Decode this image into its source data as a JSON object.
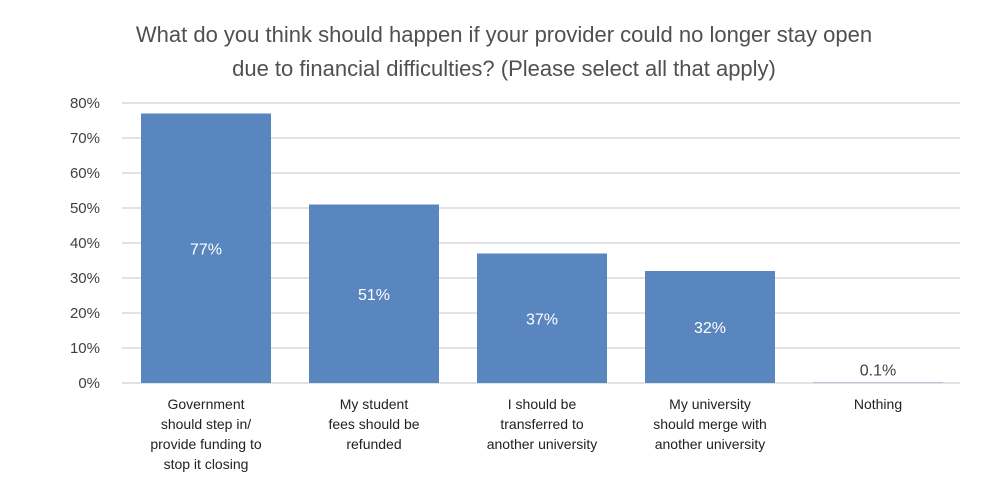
{
  "chart_data": {
    "type": "bar",
    "title_lines": [
      "What do you think should happen if your provider could no longer stay open",
      "due to financial difficulties? (Please select all that apply)"
    ],
    "categories": [
      [
        "Government",
        "should step in/",
        "provide funding to",
        "stop it closing"
      ],
      [
        "My student",
        "fees should be",
        "refunded"
      ],
      [
        "I should be",
        "transferred to",
        "another university"
      ],
      [
        "My university",
        "should merge with",
        "another university"
      ],
      [
        "Nothing"
      ]
    ],
    "values": [
      77,
      51,
      37,
      32,
      0.1
    ],
    "value_labels": [
      "77%",
      "51%",
      "37%",
      "32%",
      "0.1%"
    ],
    "y_ticks": [
      "0%",
      "10%",
      "20%",
      "30%",
      "40%",
      "50%",
      "60%",
      "70%",
      "80%"
    ],
    "ylim": [
      0,
      80
    ],
    "grid": true,
    "legend": "none",
    "bar_color": "#5a86c0",
    "grid_color": "#d9d9d9",
    "label_inside_color": "#ffffff",
    "label_outside_color": "#404040"
  }
}
